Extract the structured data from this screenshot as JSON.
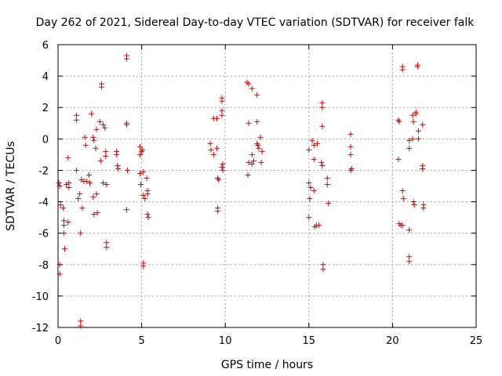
{
  "chart_data": {
    "type": "scatter",
    "title": "Day 262 of 2021, Sidereal Day-to-day VTEC variation (SDTVAR) for receiver falk",
    "xlabel": "GPS time / hours",
    "ylabel": "SDTVAR / TECUs",
    "xlim": [
      0,
      25
    ],
    "ylim": [
      -12,
      6
    ],
    "xticks": [
      0,
      5,
      10,
      15,
      20,
      25
    ],
    "yticks": [
      -12,
      -10,
      -8,
      -6,
      -4,
      -2,
      0,
      2,
      4,
      6
    ],
    "grid": true,
    "marker": "+",
    "colors": {
      "points": "#dd0000",
      "grid": "#a0a0a0",
      "axis": "#000000"
    },
    "series": [
      {
        "name": "SDTVAR",
        "points": [
          [
            0.05,
            -2.8
          ],
          [
            0.1,
            -3.0
          ],
          [
            0.15,
            -4.2
          ],
          [
            0.1,
            -8.0
          ],
          [
            0.1,
            -8.6
          ],
          [
            0.3,
            -4.4
          ],
          [
            0.35,
            -5.2
          ],
          [
            0.35,
            -5.5
          ],
          [
            0.35,
            -6.0
          ],
          [
            0.4,
            -7.0
          ],
          [
            0.5,
            -2.9
          ],
          [
            0.6,
            -1.2
          ],
          [
            0.65,
            -2.8
          ],
          [
            0.65,
            -3.1
          ],
          [
            0.6,
            -5.3
          ],
          [
            1.1,
            1.5
          ],
          [
            1.1,
            1.2
          ],
          [
            1.1,
            -2.0
          ],
          [
            1.2,
            -3.8
          ],
          [
            1.3,
            -3.5
          ],
          [
            1.35,
            -6.0
          ],
          [
            1.35,
            -11.6
          ],
          [
            1.35,
            -11.9
          ],
          [
            1.4,
            -2.6
          ],
          [
            1.45,
            -4.4
          ],
          [
            1.55,
            -2.7
          ],
          [
            1.6,
            0.1
          ],
          [
            1.65,
            -0.4
          ],
          [
            1.7,
            -2.7
          ],
          [
            1.85,
            -2.3
          ],
          [
            1.9,
            -2.8
          ],
          [
            2.0,
            1.6
          ],
          [
            2.1,
            0.1
          ],
          [
            2.15,
            -0.1
          ],
          [
            2.1,
            -3.7
          ],
          [
            2.15,
            -4.8
          ],
          [
            2.25,
            -0.6
          ],
          [
            2.3,
            0.6
          ],
          [
            2.3,
            -3.5
          ],
          [
            2.35,
            -4.7
          ],
          [
            2.5,
            1.1
          ],
          [
            2.6,
            3.3
          ],
          [
            2.6,
            3.5
          ],
          [
            2.55,
            -1.4
          ],
          [
            2.7,
            0.9
          ],
          [
            2.7,
            -2.8
          ],
          [
            2.85,
            -0.8
          ],
          [
            2.85,
            -1.1
          ],
          [
            2.9,
            -2.9
          ],
          [
            2.9,
            -6.6
          ],
          [
            2.9,
            -6.9
          ],
          [
            2.8,
            0.7
          ],
          [
            3.5,
            -0.8
          ],
          [
            3.5,
            -1.0
          ],
          [
            3.55,
            -1.7
          ],
          [
            3.6,
            -1.9
          ],
          [
            4.1,
            5.1
          ],
          [
            4.1,
            5.3
          ],
          [
            4.1,
            0.9
          ],
          [
            4.1,
            1.0
          ],
          [
            4.15,
            -2.0
          ],
          [
            4.1,
            -4.5
          ],
          [
            4.9,
            -0.5
          ],
          [
            5.0,
            -0.8
          ],
          [
            4.9,
            -1.0
          ],
          [
            4.9,
            -2.2
          ],
          [
            4.95,
            -2.9
          ],
          [
            5.05,
            -0.7
          ],
          [
            5.1,
            -2.1
          ],
          [
            5.1,
            -3.6
          ],
          [
            5.1,
            -7.9
          ],
          [
            5.1,
            -8.1
          ],
          [
            5.2,
            -3.8
          ],
          [
            5.3,
            -2.5
          ],
          [
            5.35,
            -3.3
          ],
          [
            5.35,
            -3.5
          ],
          [
            5.35,
            -4.8
          ],
          [
            5.4,
            -5.0
          ],
          [
            9.1,
            -0.3
          ],
          [
            9.15,
            -0.7
          ],
          [
            9.3,
            1.3
          ],
          [
            9.3,
            -1.0
          ],
          [
            9.5,
            1.3
          ],
          [
            9.5,
            -0.6
          ],
          [
            9.55,
            -2.5
          ],
          [
            9.6,
            -2.6
          ],
          [
            9.55,
            -4.4
          ],
          [
            9.55,
            -4.6
          ],
          [
            9.8,
            2.4
          ],
          [
            9.8,
            2.6
          ],
          [
            9.8,
            1.8
          ],
          [
            9.8,
            1.5
          ],
          [
            9.85,
            -1.6
          ],
          [
            9.8,
            -1.8
          ],
          [
            9.85,
            -2.0
          ],
          [
            11.3,
            3.6
          ],
          [
            11.4,
            3.5
          ],
          [
            11.6,
            3.2
          ],
          [
            11.4,
            1.0
          ],
          [
            11.4,
            -1.5
          ],
          [
            11.35,
            -2.3
          ],
          [
            11.6,
            -1.0
          ],
          [
            11.7,
            -1.4
          ],
          [
            11.6,
            -1.6
          ],
          [
            11.9,
            2.8
          ],
          [
            11.9,
            1.1
          ],
          [
            11.9,
            -0.3
          ],
          [
            11.95,
            -0.4
          ],
          [
            12.0,
            -0.6
          ],
          [
            12.1,
            0.1
          ],
          [
            12.2,
            -0.8
          ],
          [
            12.15,
            -1.5
          ],
          [
            15.0,
            -0.7
          ],
          [
            15.0,
            -2.8
          ],
          [
            15.1,
            -3.1
          ],
          [
            15.05,
            -3.8
          ],
          [
            15.0,
            -5.0
          ],
          [
            15.2,
            -0.1
          ],
          [
            15.3,
            -0.4
          ],
          [
            15.3,
            -1.3
          ],
          [
            15.3,
            -3.3
          ],
          [
            15.35,
            -5.6
          ],
          [
            15.45,
            -5.5
          ],
          [
            15.5,
            -0.3
          ],
          [
            15.6,
            -5.5
          ],
          [
            15.8,
            2.0
          ],
          [
            15.8,
            2.3
          ],
          [
            15.8,
            0.8
          ],
          [
            15.75,
            -1.5
          ],
          [
            15.8,
            -1.7
          ],
          [
            15.85,
            -8.0
          ],
          [
            15.85,
            -8.3
          ],
          [
            16.1,
            -2.5
          ],
          [
            16.1,
            -2.9
          ],
          [
            16.15,
            -4.1
          ],
          [
            17.5,
            0.3
          ],
          [
            17.5,
            -0.5
          ],
          [
            17.5,
            -1.0
          ],
          [
            17.55,
            -1.9
          ],
          [
            17.5,
            -2.0
          ],
          [
            20.35,
            1.2
          ],
          [
            20.4,
            1.1
          ],
          [
            20.35,
            -1.3
          ],
          [
            20.4,
            -5.4
          ],
          [
            20.5,
            -5.5
          ],
          [
            20.6,
            -5.5
          ],
          [
            20.6,
            4.4
          ],
          [
            20.6,
            4.6
          ],
          [
            20.6,
            -3.3
          ],
          [
            20.65,
            -3.8
          ],
          [
            21.0,
            -0.1
          ],
          [
            21.0,
            -0.6
          ],
          [
            21.0,
            -5.8
          ],
          [
            21.0,
            -7.5
          ],
          [
            21.0,
            -7.8
          ],
          [
            21.2,
            0.0
          ],
          [
            21.2,
            1.5
          ],
          [
            21.25,
            1.1
          ],
          [
            21.25,
            -4.0
          ],
          [
            21.3,
            -4.2
          ],
          [
            21.4,
            1.6
          ],
          [
            21.4,
            1.7
          ],
          [
            21.5,
            4.6
          ],
          [
            21.5,
            4.7
          ],
          [
            21.55,
            0.5
          ],
          [
            21.55,
            0.0
          ],
          [
            21.8,
            0.9
          ],
          [
            21.8,
            -1.9
          ],
          [
            21.8,
            -1.7
          ],
          [
            21.85,
            -4.2
          ],
          [
            21.85,
            -4.4
          ]
        ]
      }
    ]
  }
}
